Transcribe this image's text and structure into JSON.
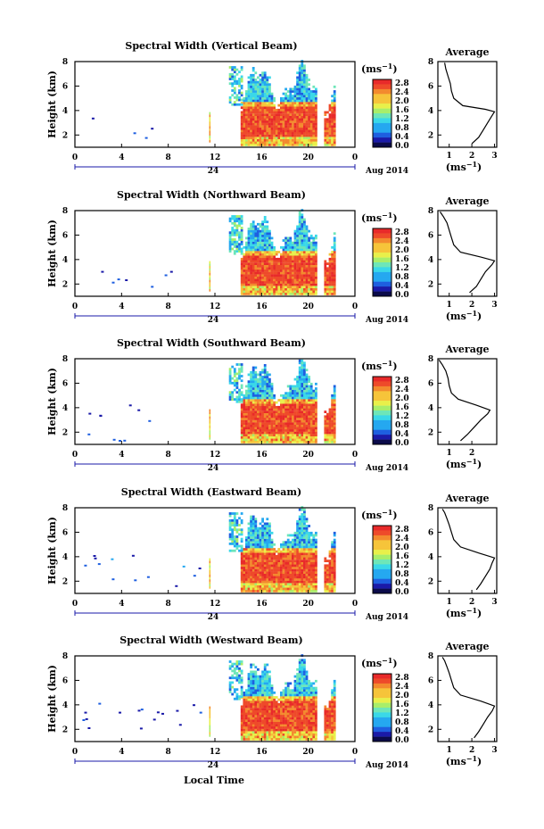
{
  "figure": {
    "xlabel": "Local Time",
    "day_label": "24",
    "date_label": "Aug 2014",
    "unit_label": "(ms",
    "unit_exp": "−1",
    "avg_title": "Average"
  },
  "colormap": {
    "stops": [
      "#0b0b4a",
      "#1a1aa8",
      "#1e5fe0",
      "#25a8f0",
      "#3ad8e8",
      "#6ee6b8",
      "#a8ee6a",
      "#e8f04a",
      "#f6c43a",
      "#f38a2e",
      "#ee4a2a",
      "#e82a2a"
    ],
    "ticks": [
      "0.0",
      "0.4",
      "0.8",
      "1.2",
      "1.6",
      "2.0",
      "2.4",
      "2.8"
    ]
  },
  "chart_data": [
    {
      "type": "heatmap",
      "title": "Spectral Width (Vertical Beam)",
      "ylabel": "Height (km)",
      "x_ticks": [
        "0",
        "4",
        "8",
        "12",
        "16",
        "20",
        "0"
      ],
      "y_ticks": [
        "2",
        "4",
        "6",
        "8"
      ],
      "xlim": [
        0,
        24
      ],
      "ylim": [
        1,
        8
      ],
      "colorbar": {
        "label": "(ms−1)",
        "range": [
          0,
          2.8
        ]
      },
      "average_profile": {
        "title": "Average",
        "xlabel": "(ms−1)",
        "x_ticks": [
          "1",
          "2",
          "3"
        ],
        "y_ticks": [
          "2",
          "4",
          "6",
          "8"
        ],
        "height_km": [
          1.3,
          1.8,
          2.4,
          3.0,
          3.6,
          3.9,
          4.1,
          4.4,
          5.0,
          5.6,
          6.2,
          6.8,
          7.4,
          7.9
        ],
        "width_ms": [
          2.0,
          2.3,
          2.5,
          2.7,
          2.9,
          3.0,
          2.6,
          1.6,
          1.2,
          1.1,
          1.05,
          0.95,
          0.85,
          0.8
        ]
      }
    },
    {
      "type": "heatmap",
      "title": "Spectral Width (Northward Beam)",
      "ylabel": "Height (km)",
      "x_ticks": [
        "0",
        "4",
        "8",
        "12",
        "16",
        "20",
        "0"
      ],
      "y_ticks": [
        "2",
        "4",
        "6",
        "8"
      ],
      "xlim": [
        0,
        24
      ],
      "ylim": [
        1,
        8
      ],
      "colorbar": {
        "label": "(ms−1)",
        "range": [
          0,
          2.8
        ]
      },
      "average_profile": {
        "title": "Average",
        "xlabel": "(ms−1)",
        "x_ticks": [
          "1",
          "2",
          "3"
        ],
        "y_ticks": [
          "2",
          "4",
          "6",
          "8"
        ],
        "height_km": [
          1.3,
          1.8,
          2.4,
          3.0,
          3.6,
          3.9,
          4.2,
          4.6,
          5.2,
          5.8,
          6.4,
          7.0,
          7.5,
          7.9
        ],
        "width_ms": [
          1.9,
          2.2,
          2.4,
          2.6,
          2.9,
          3.0,
          2.4,
          1.5,
          1.2,
          1.1,
          1.0,
          0.9,
          0.75,
          0.6
        ]
      }
    },
    {
      "type": "heatmap",
      "title": "Spectral Width (Southward Beam)",
      "ylabel": "Height (km)",
      "x_ticks": [
        "0",
        "4",
        "8",
        "12",
        "16",
        "20",
        "0"
      ],
      "y_ticks": [
        "2",
        "4",
        "6",
        "8"
      ],
      "xlim": [
        0,
        24
      ],
      "ylim": [
        1,
        8
      ],
      "colorbar": {
        "label": "(ms−1)",
        "range": [
          0,
          2.8
        ]
      },
      "average_profile": {
        "title": "Average",
        "xlabel": "(ms−1)",
        "x_ticks": [
          "1",
          "2"
        ],
        "y_ticks": [
          "2",
          "4",
          "6",
          "8"
        ],
        "height_km": [
          1.3,
          1.8,
          2.4,
          3.0,
          3.5,
          3.8,
          4.2,
          4.7,
          5.2,
          5.8,
          6.4,
          7.0,
          7.5,
          7.9
        ],
        "width_ms": [
          1.5,
          1.8,
          2.1,
          2.4,
          2.7,
          2.8,
          2.2,
          1.4,
          1.1,
          1.0,
          0.95,
          0.85,
          0.7,
          0.55
        ]
      }
    },
    {
      "type": "heatmap",
      "title": "Spectral Width (Eastward Beam)",
      "ylabel": "Height (km)",
      "x_ticks": [
        "0",
        "4",
        "8",
        "12",
        "16",
        "20",
        "0"
      ],
      "y_ticks": [
        "2",
        "4",
        "6",
        "8"
      ],
      "xlim": [
        0,
        24
      ],
      "ylim": [
        1,
        8
      ],
      "colorbar": {
        "label": "(ms−1)",
        "range": [
          0,
          2.8
        ]
      },
      "average_profile": {
        "title": "Average",
        "xlabel": "(ms−1)",
        "x_ticks": [
          "1",
          "2",
          "3"
        ],
        "y_ticks": [
          "2",
          "4",
          "6",
          "8"
        ],
        "height_km": [
          1.3,
          1.8,
          2.4,
          3.0,
          3.5,
          3.9,
          4.3,
          4.8,
          5.4,
          6.0,
          6.6,
          7.1,
          7.6,
          7.9
        ],
        "width_ms": [
          2.2,
          2.4,
          2.6,
          2.8,
          2.9,
          3.0,
          2.3,
          1.5,
          1.2,
          1.1,
          1.0,
          0.9,
          0.8,
          0.7
        ]
      }
    },
    {
      "type": "heatmap",
      "title": "Spectral Width (Westward Beam)",
      "ylabel": "Height (km)",
      "x_ticks": [
        "0",
        "4",
        "8",
        "12",
        "16",
        "20",
        "0"
      ],
      "y_ticks": [
        "2",
        "4",
        "6",
        "8"
      ],
      "xlim": [
        0,
        24
      ],
      "ylim": [
        1,
        8
      ],
      "colorbar": {
        "label": "(ms−1)",
        "range": [
          0,
          2.8
        ]
      },
      "average_profile": {
        "title": "Average",
        "xlabel": "(ms−1)",
        "x_ticks": [
          "1",
          "2",
          "3"
        ],
        "y_ticks": [
          "2",
          "4",
          "6",
          "8"
        ],
        "height_km": [
          1.3,
          1.8,
          2.4,
          3.0,
          3.5,
          3.9,
          4.3,
          4.8,
          5.4,
          6.0,
          6.6,
          7.1,
          7.6,
          7.9
        ],
        "width_ms": [
          2.1,
          2.3,
          2.5,
          2.7,
          2.9,
          3.0,
          2.4,
          1.5,
          1.2,
          1.1,
          1.0,
          0.9,
          0.8,
          0.7
        ]
      }
    }
  ]
}
